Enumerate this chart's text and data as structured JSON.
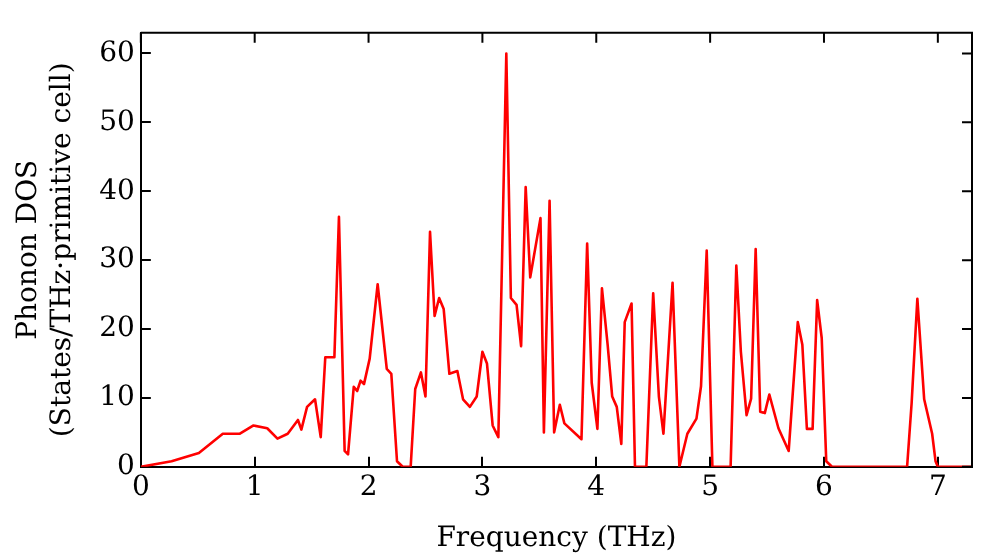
{
  "chart_data": {
    "type": "line",
    "xlabel": "Frequency (THz)",
    "ylabel": "Phonon DOS\n(States/THz·primitive cell)",
    "xlim": [
      0,
      7.3
    ],
    "ylim": [
      0,
      63
    ],
    "xticks": [
      0,
      1,
      2,
      3,
      4,
      5,
      6,
      7
    ],
    "yticks": [
      0,
      10,
      20,
      30,
      40,
      50,
      60
    ],
    "grid": false,
    "legend": false,
    "marker": "none",
    "line_style": "solid",
    "series": [
      {
        "color": "#ff0000",
        "x": [
          0,
          0.27,
          0.51,
          0.72,
          0.87,
          0.99,
          1.11,
          1.2,
          1.29,
          1.38,
          1.41,
          1.46,
          1.53,
          1.58,
          1.62,
          1.7,
          1.74,
          1.79,
          1.82,
          1.87,
          1.9,
          1.93,
          1.96,
          2.01,
          2.08,
          2.16,
          2.2,
          2.25,
          2.3,
          2.37,
          2.41,
          2.46,
          2.5,
          2.54,
          2.58,
          2.62,
          2.66,
          2.71,
          2.78,
          2.83,
          2.89,
          2.95,
          3.0,
          3.04,
          3.09,
          3.14,
          3.21,
          3.25,
          3.3,
          3.34,
          3.38,
          3.42,
          3.51,
          3.54,
          3.59,
          3.63,
          3.68,
          3.72,
          3.87,
          3.92,
          3.96,
          4.01,
          4.05,
          4.1,
          4.14,
          4.18,
          4.22,
          4.25,
          4.31,
          4.34,
          4.44,
          4.5,
          4.55,
          4.59,
          4.67,
          4.73,
          4.8,
          4.88,
          4.92,
          4.97,
          5.02,
          5.18,
          5.23,
          5.27,
          5.32,
          5.36,
          5.4,
          5.44,
          5.48,
          5.52,
          5.6,
          5.69,
          5.77,
          5.81,
          5.85,
          5.9,
          5.94,
          5.98,
          6.02,
          6.07,
          6.73,
          6.77,
          6.82,
          6.88,
          6.95,
          6.98,
          7.0,
          7.3
        ],
        "values": [
          0,
          0.8,
          2,
          4.8,
          4.8,
          6,
          5.6,
          4.1,
          4.8,
          6.8,
          5.4,
          8.7,
          9.8,
          4.3,
          15.9,
          15.9,
          36.3,
          2.3,
          1.8,
          11.6,
          11,
          12.5,
          12,
          15.7,
          26.5,
          14.2,
          13.5,
          0.8,
          0,
          0,
          11.3,
          13.7,
          10.2,
          34.1,
          21.9,
          24.5,
          22.9,
          13.5,
          13.9,
          9.8,
          8.7,
          10.2,
          16.7,
          15,
          6,
          4.3,
          60,
          24.5,
          23.5,
          17.5,
          40.6,
          27.5,
          36.1,
          5,
          38.6,
          5,
          9,
          6.3,
          4,
          32.4,
          12.2,
          5.5,
          25.9,
          17.7,
          10.2,
          8.7,
          3.3,
          21,
          23.7,
          0,
          0,
          25.2,
          10.2,
          4.8,
          26.7,
          0,
          4.8,
          7,
          11.7,
          31.4,
          0,
          0,
          29.2,
          16.7,
          7.5,
          9.9,
          31.6,
          8,
          7.8,
          10.5,
          5.6,
          2.3,
          21,
          17.7,
          5.5,
          5.5,
          24.2,
          18.7,
          0.8,
          0,
          0,
          9.3,
          24.4,
          9.8,
          4.8,
          0.8,
          0,
          0
        ]
      }
    ]
  }
}
